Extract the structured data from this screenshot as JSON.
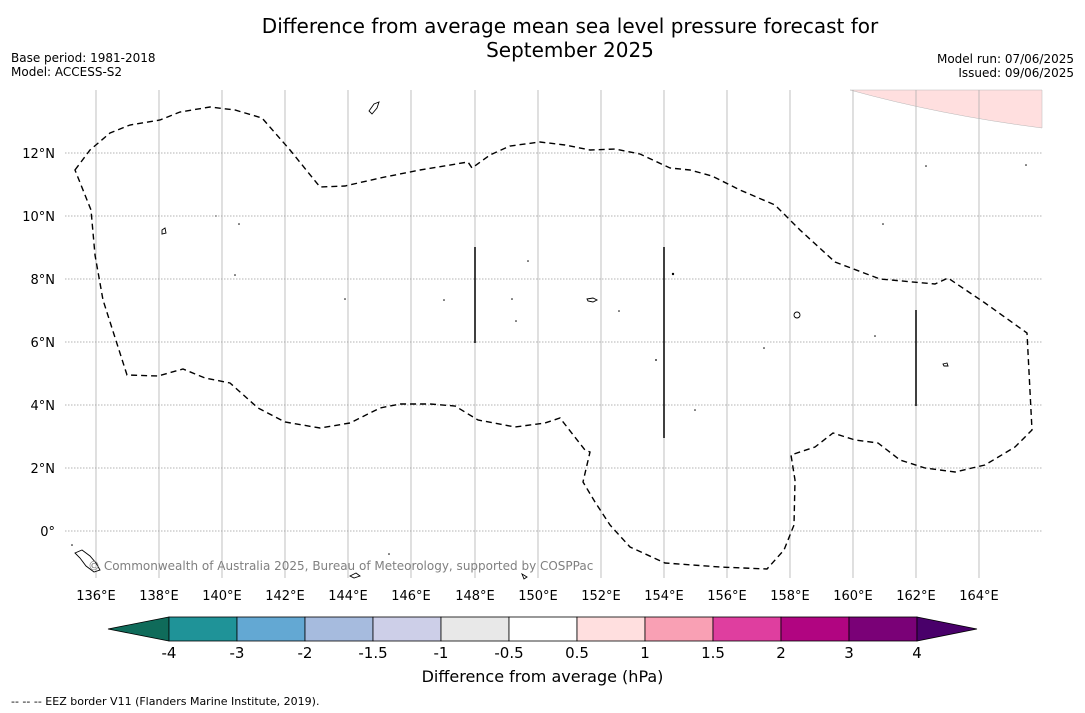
{
  "title_line1": "Difference from average mean sea level pressure forecast for",
  "title_line2": "September 2025",
  "base_period": "Base period: 1981-2018",
  "model": "Model: ACCESS-S2",
  "model_run": "Model run: 07/06/2025",
  "issued": "Issued: 09/06/2025",
  "copyright": "© Commonwealth of Australia 2025, Bureau of Meteorology, supported by COSPPac",
  "lon_labels": [
    "136°E",
    "138°E",
    "140°E",
    "142°E",
    "144°E",
    "146°E",
    "148°E",
    "150°E",
    "152°E",
    "154°E",
    "156°E",
    "158°E",
    "160°E",
    "162°E",
    "164°E"
  ],
  "lat_labels": [
    "12°N",
    "10°N",
    "8°N",
    "6°N",
    "4°N",
    "2°N",
    "0°"
  ],
  "colorbar": {
    "label": "Difference from average (hPa)",
    "ticks": [
      "-4",
      "-3",
      "-2",
      "-1.5",
      "-1",
      "-0.5",
      "0.5",
      "1",
      "1.5",
      "2",
      "3",
      "4"
    ],
    "colors": [
      "#1f9398",
      "#63a8d3",
      "#a6bbde",
      "#cdcfe8",
      "#e8e8e8",
      "#ffffff",
      "#ffdfdf",
      "#f9a0b4",
      "#df3e9f",
      "#b10581",
      "#7a0177"
    ],
    "under_color": "#0f6b5a",
    "over_color": "#49006a"
  },
  "footer_legend": "-- -- -- EEZ border V11 (Flanders Marine Institute, 2019)."
}
